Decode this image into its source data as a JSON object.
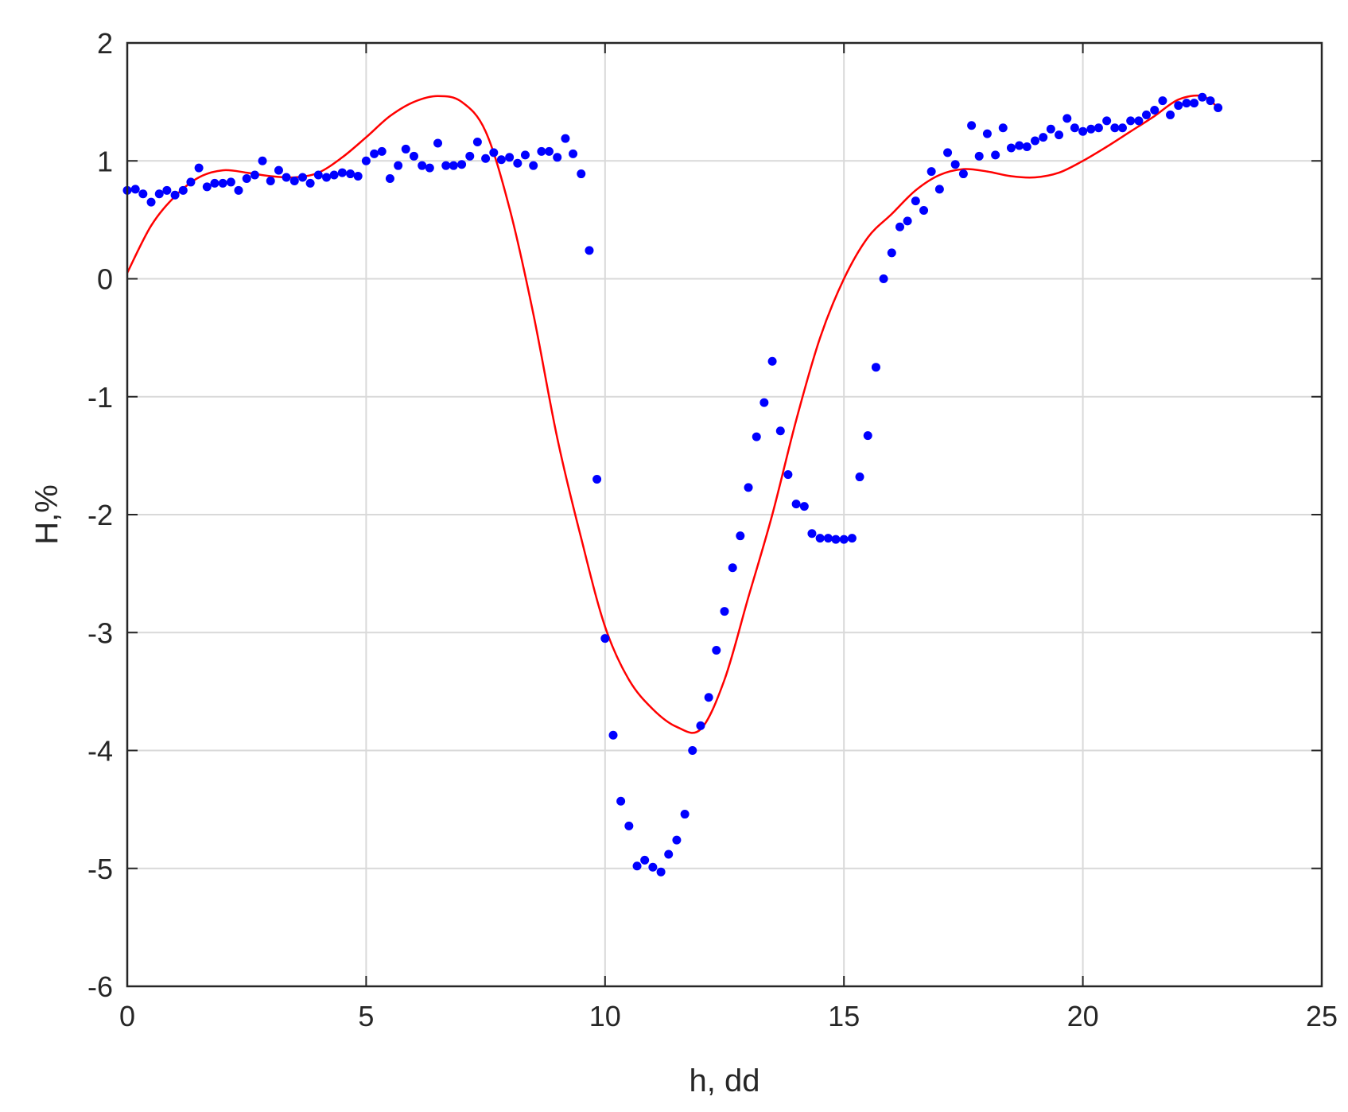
{
  "chart_data": {
    "type": "scatter",
    "title": "",
    "xlabel": "h, dd",
    "ylabel": "H,%",
    "xlim": [
      0,
      25
    ],
    "ylim": [
      -6,
      2
    ],
    "xticks": [
      0,
      5,
      10,
      15,
      20,
      25
    ],
    "yticks": [
      2,
      1,
      0,
      -1,
      -2,
      -3,
      -4,
      -5,
      -6
    ],
    "xtick_labels": [
      "0",
      "5",
      "10",
      "15",
      "20",
      "25"
    ],
    "ytick_labels": [
      "2",
      "1",
      "0",
      "-1",
      "-2",
      "-3",
      "-4",
      "-5",
      "-6"
    ],
    "grid": true,
    "legend": "none",
    "colors": {
      "points": "#0000ff",
      "curve": "#ff0000",
      "grid": "#d9d9d9",
      "axes": "#262626"
    },
    "series": [
      {
        "kind": "points",
        "x": [
          0.0,
          0.17,
          0.33,
          0.5,
          0.67,
          0.83,
          1.0,
          1.17,
          1.33,
          1.5,
          1.67,
          1.83,
          2.0,
          2.17,
          2.33,
          2.5,
          2.67,
          2.83,
          3.0,
          3.17,
          3.33,
          3.5,
          3.67,
          3.83,
          4.0,
          4.17,
          4.33,
          4.5,
          4.67,
          4.83,
          5.0,
          5.17,
          5.33,
          5.5,
          5.67,
          5.83,
          6.0,
          6.17,
          6.33,
          6.5,
          6.67,
          6.83,
          7.0,
          7.17,
          7.33,
          7.5,
          7.67,
          7.83,
          8.0,
          8.17,
          8.33,
          8.5,
          8.67,
          8.83,
          9.0,
          9.17,
          9.33,
          9.5,
          9.67,
          9.83,
          10.0,
          10.17,
          10.33,
          10.5,
          10.67,
          10.83,
          11.0,
          11.17,
          11.33,
          11.5,
          11.67,
          11.83,
          12.0,
          12.17,
          12.33,
          12.5,
          12.67,
          12.83,
          13.0,
          13.17,
          13.33,
          13.5,
          13.67,
          13.83,
          14.0,
          14.17,
          14.33,
          14.5,
          14.67,
          14.83,
          15.0,
          15.17,
          15.33,
          15.5,
          15.67,
          15.83,
          16.0,
          16.17,
          16.33,
          16.5,
          16.67,
          16.83,
          17.0,
          17.17,
          17.33,
          17.5,
          17.67,
          17.83,
          18.0,
          18.17,
          18.33,
          18.5,
          18.67,
          18.83,
          19.0,
          19.17,
          19.33,
          19.5,
          19.67,
          19.83,
          20.0,
          20.17,
          20.33,
          20.5,
          20.67,
          20.83,
          21.0,
          21.17,
          21.33,
          21.5,
          21.67,
          21.83,
          22.0,
          22.17,
          22.33,
          22.5,
          22.67,
          22.83
        ],
        "y": [
          0.75,
          0.76,
          0.72,
          0.65,
          0.72,
          0.75,
          0.71,
          0.75,
          0.82,
          0.94,
          0.78,
          0.81,
          0.81,
          0.82,
          0.75,
          0.85,
          0.88,
          1.0,
          0.83,
          0.92,
          0.86,
          0.83,
          0.86,
          0.81,
          0.88,
          0.86,
          0.88,
          0.9,
          0.89,
          0.87,
          1.0,
          1.06,
          1.08,
          0.85,
          0.96,
          1.1,
          1.04,
          0.96,
          0.94,
          1.15,
          0.96,
          0.96,
          0.97,
          1.04,
          1.16,
          1.02,
          1.07,
          1.01,
          1.03,
          0.98,
          1.05,
          0.96,
          1.08,
          1.08,
          1.03,
          1.19,
          1.06,
          0.89,
          0.24,
          -1.7,
          -3.05,
          -3.87,
          -4.43,
          -4.64,
          -4.98,
          -4.93,
          -4.99,
          -5.03,
          -4.88,
          -4.76,
          -4.54,
          -4.0,
          -3.79,
          -3.55,
          -3.15,
          -2.82,
          -2.45,
          -2.18,
          -1.77,
          -1.34,
          -1.05,
          -0.7,
          -1.29,
          -1.66,
          -1.91,
          -1.93,
          -2.16,
          -2.2,
          -2.2,
          -2.21,
          -2.21,
          -2.2,
          -1.68,
          -1.33,
          -0.75,
          0.0,
          0.22,
          0.44,
          0.49,
          0.66,
          0.58,
          0.91,
          0.76,
          1.07,
          0.97,
          0.89,
          1.3,
          1.04,
          1.23,
          1.05,
          1.28,
          1.11,
          1.13,
          1.12,
          1.17,
          1.2,
          1.27,
          1.22,
          1.36,
          1.28,
          1.25,
          1.27,
          1.28,
          1.34,
          1.28,
          1.28,
          1.34,
          1.34,
          1.39,
          1.43,
          1.51,
          1.39,
          1.47,
          1.49,
          1.49,
          1.54,
          1.51,
          1.45
        ]
      },
      {
        "kind": "curve",
        "x": [
          0,
          0.5,
          1,
          1.5,
          2,
          2.5,
          3,
          3.5,
          4,
          4.5,
          5,
          5.5,
          6,
          6.5,
          7,
          7.5,
          8,
          8.5,
          9,
          9.5,
          10,
          10.5,
          11,
          11.5,
          12,
          12.5,
          13,
          13.5,
          14,
          14.5,
          15,
          15.5,
          16,
          16.5,
          17,
          17.5,
          18,
          18.5,
          19,
          19.5,
          20,
          20.5,
          21,
          21.5,
          22,
          22.5,
          22.83
        ],
        "y": [
          0.05,
          0.45,
          0.7,
          0.86,
          0.92,
          0.9,
          0.87,
          0.86,
          0.9,
          1.03,
          1.2,
          1.38,
          1.5,
          1.55,
          1.5,
          1.25,
          0.6,
          -0.3,
          -1.35,
          -2.2,
          -2.95,
          -3.4,
          -3.65,
          -3.8,
          -3.82,
          -3.4,
          -2.7,
          -2.0,
          -1.2,
          -0.5,
          0.0,
          0.35,
          0.55,
          0.75,
          0.88,
          0.93,
          0.91,
          0.87,
          0.86,
          0.9,
          1.0,
          1.12,
          1.25,
          1.38,
          1.52,
          1.55,
          1.45
        ]
      }
    ]
  }
}
